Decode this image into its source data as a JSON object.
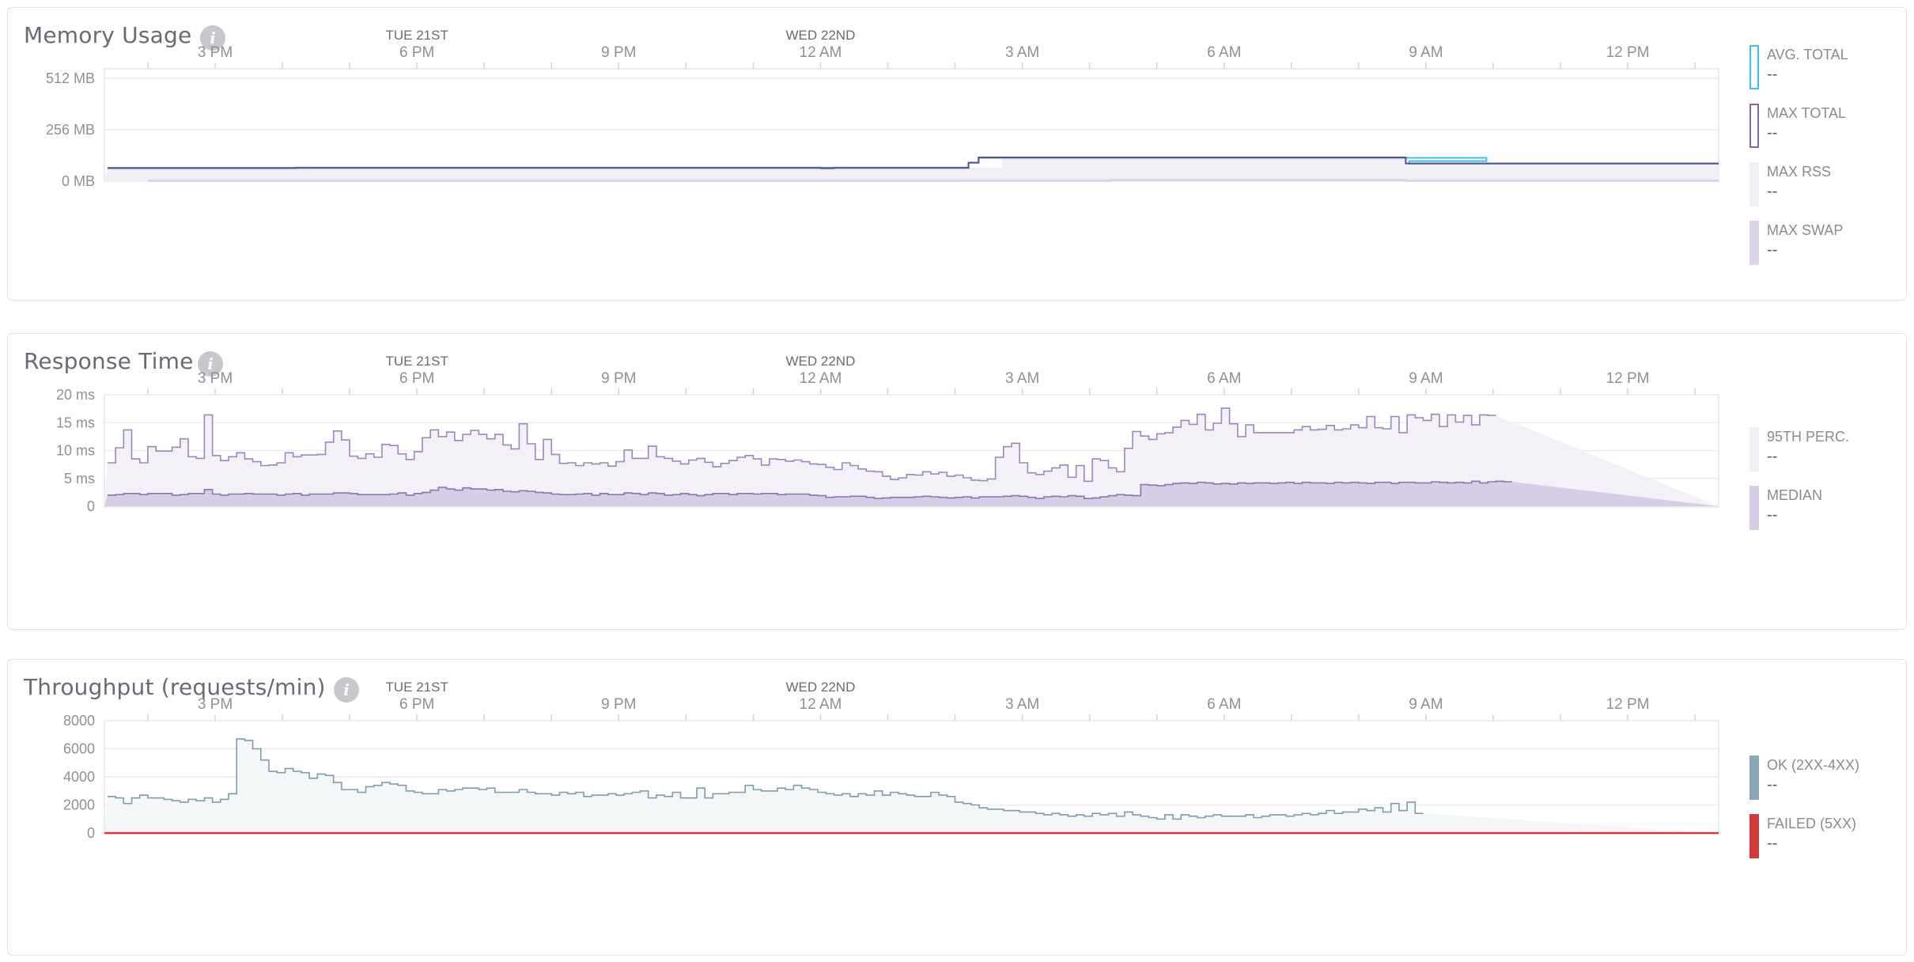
{
  "panels": [
    {
      "title": "Memory Usage",
      "legend": [
        {
          "label": "AVG. TOTAL",
          "value": "--",
          "style": "outline",
          "color": "#3ec1e6"
        },
        {
          "label": "MAX TOTAL",
          "value": "--",
          "style": "outline",
          "color": "#7e68a8"
        },
        {
          "label": "MAX RSS",
          "value": "--",
          "style": "fill",
          "color": "#f1eef6"
        },
        {
          "label": "MAX SWAP",
          "value": "--",
          "style": "fill",
          "color": "#dcd3e8"
        }
      ]
    },
    {
      "title": "Response Time",
      "legend": [
        {
          "label": "95TH PERC.",
          "value": "--",
          "style": "fill",
          "color": "#f1eef6"
        },
        {
          "label": "MEDIAN",
          "value": "--",
          "style": "fill",
          "color": "#d8cde6"
        }
      ]
    },
    {
      "title": "Throughput (requests/min)",
      "legend": [
        {
          "label": "OK (2XX-4XX)",
          "value": "--",
          "style": "fill",
          "color": "#8aa8b4"
        },
        {
          "label": "FAILED (5XX)",
          "value": "--",
          "style": "fill",
          "color": "#d23a3a"
        }
      ]
    }
  ],
  "chart_data": [
    {
      "type": "area",
      "title": "Memory Usage",
      "x_axis": {
        "day_labels": [
          {
            "label": "TUE 21ST",
            "hours_from_3pm": 3
          },
          {
            "label": "WED 22ND",
            "hours_from_3pm": 9
          }
        ],
        "tick_labels": [
          "3 PM",
          "6 PM",
          "9 PM",
          "12 AM",
          "3 AM",
          "6 AM",
          "9 AM",
          "12 PM"
        ],
        "range_hours_from_3pm": [
          -1.6,
          22.4
        ]
      },
      "y_axis": {
        "ticks": [
          "0 MB",
          "256 MB",
          "512 MB"
        ],
        "range_mb": [
          0,
          560
        ]
      },
      "grid": true,
      "series": [
        {
          "name": "MAX SWAP",
          "segments": [
            {
              "from": -1,
              "to": 13.3,
              "value": 2
            },
            {
              "from": 13.3,
              "to": 17.7,
              "value": 6
            },
            {
              "from": 17.7,
              "to": 22.4,
              "value": 2
            }
          ]
        },
        {
          "name": "MAX RSS",
          "segments": [
            {
              "from": -1.6,
              "to": 11.7,
              "value": 68
            },
            {
              "from": 11.7,
              "to": 17.7,
              "value": 115
            },
            {
              "from": 17.7,
              "to": 22.4,
              "value": 86
            }
          ]
        },
        {
          "name": "AVG. TOTAL",
          "segments": [
            {
              "from": -1.6,
              "to": 1.2,
              "value": 64
            },
            {
              "from": 1.2,
              "to": 1.4,
              "value": 68
            },
            {
              "from": 1.4,
              "to": 9.0,
              "value": 68
            },
            {
              "from": 9.0,
              "to": 9.2,
              "value": 63
            },
            {
              "from": 9.2,
              "to": 11.2,
              "value": 68
            },
            {
              "from": 11.2,
              "to": 11.35,
              "value": 92
            },
            {
              "from": 11.35,
              "to": 18.9,
              "value": 116
            },
            {
              "from": 18.9,
              "to": 17.75,
              "value": 100
            },
            {
              "from": 17.75,
              "to": 22.4,
              "value": 87
            }
          ]
        },
        {
          "name": "MAX TOTAL",
          "segments": [
            {
              "from": -1.6,
              "to": 11.2,
              "value": 66
            },
            {
              "from": 11.2,
              "to": 11.35,
              "value": 92
            },
            {
              "from": 11.35,
              "to": 17.7,
              "value": 118
            },
            {
              "from": 17.7,
              "to": 22.4,
              "value": 88
            }
          ]
        }
      ]
    },
    {
      "type": "area",
      "title": "Response Time",
      "x_axis": {
        "day_labels": [
          {
            "label": "TUE 21ST",
            "hours_from_3pm": 3
          },
          {
            "label": "WED 22ND",
            "hours_from_3pm": 9
          }
        ],
        "tick_labels": [
          "3 PM",
          "6 PM",
          "9 PM",
          "12 AM",
          "3 AM",
          "6 AM",
          "9 AM",
          "12 PM"
        ],
        "range_hours_from_3pm": [
          -1.6,
          22.4
        ]
      },
      "y_axis": {
        "ticks": [
          "0",
          "5 ms",
          "10 ms",
          "15 ms",
          "20 ms"
        ],
        "range": [
          0,
          20
        ]
      },
      "grid": true,
      "series": [
        {
          "name": "95TH PERC.",
          "step_hours": 0.12,
          "values": [
            7.8,
            10.5,
            13.7,
            8.5,
            7.8,
            10.7,
            9.9,
            9.9,
            10.6,
            12.1,
            8.9,
            8.6,
            16.4,
            9.1,
            8.2,
            8.9,
            9.6,
            8.5,
            8.0,
            7.3,
            7.4,
            7.8,
            9.6,
            8.9,
            9.2,
            9.2,
            9.3,
            11.5,
            13.5,
            11.9,
            9.0,
            8.6,
            9.4,
            8.8,
            11.1,
            10.9,
            9.4,
            8.4,
            9.8,
            12.3,
            13.7,
            12.5,
            13.3,
            11.8,
            12.9,
            13.6,
            12.9,
            12.1,
            12.9,
            11.0,
            10.3,
            14.8,
            11.2,
            8.4,
            12.0,
            9.3,
            7.7,
            7.8,
            7.3,
            7.8,
            7.6,
            7.8,
            7.2,
            8.0,
            10.1,
            8.6,
            8.6,
            10.8,
            8.9,
            8.6,
            8.1,
            7.6,
            8.3,
            8.6,
            7.9,
            7.1,
            7.7,
            8.2,
            8.8,
            9.1,
            8.5,
            7.4,
            8.5,
            8.4,
            8.1,
            8.3,
            8.0,
            7.6,
            7.5,
            7.0,
            6.6,
            7.8,
            7.3,
            6.7,
            6.3,
            6.2,
            5.4,
            4.8,
            5.1,
            5.7,
            5.6,
            6.2,
            5.8,
            6.1,
            5.4,
            5.6,
            5.1,
            4.7,
            4.6,
            4.9,
            8.8,
            10.7,
            11.3,
            7.8,
            6.0,
            5.7,
            6.3,
            6.9,
            7.4,
            5.2,
            7.3,
            4.5,
            8.5,
            8.2,
            6.9,
            6.2,
            10.4,
            13.4,
            12.6,
            12.0,
            13.0,
            13.2,
            14.2,
            15.4,
            14.7,
            16.5,
            13.7,
            14.9,
            17.6,
            14.8,
            12.5,
            14.6,
            13.2,
            13.2,
            13.2,
            13.2,
            13.2,
            13.7,
            14.3,
            13.7,
            13.8,
            14.5,
            13.7,
            13.9,
            14.6,
            14.1,
            16.1,
            14.1,
            13.9,
            16.1,
            13.2,
            16.4,
            15.9,
            15.4,
            16.5,
            14.3,
            16.4,
            15.1,
            16.3,
            14.6,
            16.4,
            16.3
          ]
        },
        {
          "name": "MEDIAN",
          "step_hours": 0.12,
          "values": [
            2.0,
            2.1,
            2.3,
            2.3,
            2.1,
            2.3,
            2.3,
            2.3,
            2.0,
            2.1,
            2.3,
            2.3,
            3.0,
            2.2,
            2.0,
            2.2,
            2.2,
            2.3,
            2.2,
            2.2,
            2.2,
            2.0,
            2.2,
            2.3,
            2.0,
            2.2,
            2.2,
            2.2,
            2.4,
            2.4,
            2.3,
            2.1,
            2.1,
            2.1,
            2.1,
            2.2,
            2.4,
            2.0,
            2.3,
            2.5,
            2.9,
            3.4,
            3.1,
            2.9,
            3.3,
            3.1,
            3.1,
            2.9,
            3.0,
            2.7,
            2.6,
            2.8,
            2.7,
            2.5,
            2.4,
            2.2,
            2.1,
            2.1,
            2.2,
            2.3,
            2.0,
            2.3,
            2.1,
            2.1,
            2.4,
            2.3,
            2.1,
            2.4,
            2.3,
            2.0,
            2.1,
            2.3,
            2.1,
            1.9,
            2.1,
            2.3,
            2.3,
            2.1,
            2.3,
            2.3,
            2.2,
            2.3,
            2.3,
            2.1,
            2.2,
            2.2,
            2.2,
            2.0,
            1.9,
            1.6,
            1.7,
            1.7,
            1.8,
            1.8,
            1.6,
            1.4,
            1.5,
            1.6,
            1.6,
            1.6,
            1.7,
            1.8,
            1.7,
            1.6,
            1.5,
            1.6,
            1.7,
            1.5,
            1.7,
            1.7,
            1.7,
            1.8,
            1.9,
            1.8,
            1.6,
            1.4,
            1.7,
            1.8,
            1.7,
            1.9,
            1.8,
            1.4,
            1.5,
            1.7,
            1.9,
            2.1,
            2.0,
            1.9,
            3.9,
            3.8,
            3.7,
            3.9,
            4.1,
            4.2,
            4.1,
            4.3,
            4.2,
            4.0,
            4.1,
            4.0,
            4.2,
            4.1,
            4.2,
            4.2,
            4.1,
            4.2,
            4.3,
            4.1,
            4.3,
            4.2,
            4.2,
            4.1,
            4.3,
            4.2,
            4.3,
            4.2,
            4.1,
            4.3,
            4.3,
            4.1,
            4.3,
            4.3,
            4.2,
            4.2,
            4.4,
            4.3,
            4.2,
            4.3,
            4.2,
            4.5,
            4.2,
            4.4,
            4.5,
            4.4
          ]
        }
      ]
    },
    {
      "type": "area",
      "title": "Throughput (requests/min)",
      "x_axis": {
        "day_labels": [
          {
            "label": "TUE 21ST",
            "hours_from_3pm": 3
          },
          {
            "label": "WED 22ND",
            "hours_from_3pm": 9
          }
        ],
        "tick_labels": [
          "3 PM",
          "6 PM",
          "9 PM",
          "12 AM",
          "3 AM",
          "6 AM",
          "9 AM",
          "12 PM"
        ],
        "range_hours_from_3pm": [
          -1.6,
          22.4
        ]
      },
      "y_axis": {
        "ticks": [
          "0",
          "2000",
          "4000",
          "6000",
          "8000"
        ],
        "range": [
          0,
          8000
        ]
      },
      "grid": true,
      "series": [
        {
          "name": "OK (2XX-4XX)",
          "step_hours": 0.12,
          "values": [
            2600,
            2500,
            2100,
            2500,
            2700,
            2500,
            2500,
            2400,
            2300,
            2200,
            2400,
            2300,
            2500,
            2200,
            2400,
            2800,
            6700,
            6600,
            6000,
            5200,
            4400,
            4300,
            4600,
            4400,
            4300,
            3900,
            4200,
            4100,
            3600,
            3100,
            3100,
            2900,
            3300,
            3400,
            3600,
            3500,
            3400,
            3000,
            2900,
            2800,
            2800,
            3100,
            3000,
            3100,
            3200,
            3200,
            3100,
            3200,
            2900,
            2900,
            2900,
            3100,
            2900,
            2800,
            2800,
            2700,
            2900,
            2800,
            2900,
            2600,
            2700,
            2700,
            2800,
            2700,
            2800,
            2900,
            3000,
            2500,
            2700,
            2600,
            2900,
            2500,
            2500,
            3200,
            2500,
            2800,
            2800,
            2900,
            2900,
            3400,
            3100,
            3000,
            3000,
            3200,
            3100,
            3400,
            3200,
            3100,
            2900,
            2800,
            2700,
            2800,
            2600,
            2800,
            2700,
            3000,
            2700,
            2900,
            2800,
            2700,
            2600,
            2600,
            2900,
            2700,
            2600,
            2200,
            2100,
            2000,
            1800,
            1700,
            1700,
            1600,
            1600,
            1500,
            1500,
            1400,
            1300,
            1400,
            1300,
            1200,
            1300,
            1200,
            1400,
            1300,
            1400,
            1200,
            1500,
            1300,
            1200,
            1100,
            1000,
            1300,
            1000,
            1300,
            1200,
            1100,
            1200,
            1300,
            1200,
            1200,
            1200,
            1300,
            1100,
            1200,
            1300,
            1300,
            1200,
            1300,
            1400,
            1300,
            1400,
            1600,
            1400,
            1500,
            1500,
            1700,
            1600,
            1800,
            1500,
            2100,
            1600,
            2200,
            1400
          ]
        },
        {
          "name": "FAILED (5XX)",
          "step_hours": 24,
          "values": [
            0
          ]
        }
      ]
    }
  ]
}
